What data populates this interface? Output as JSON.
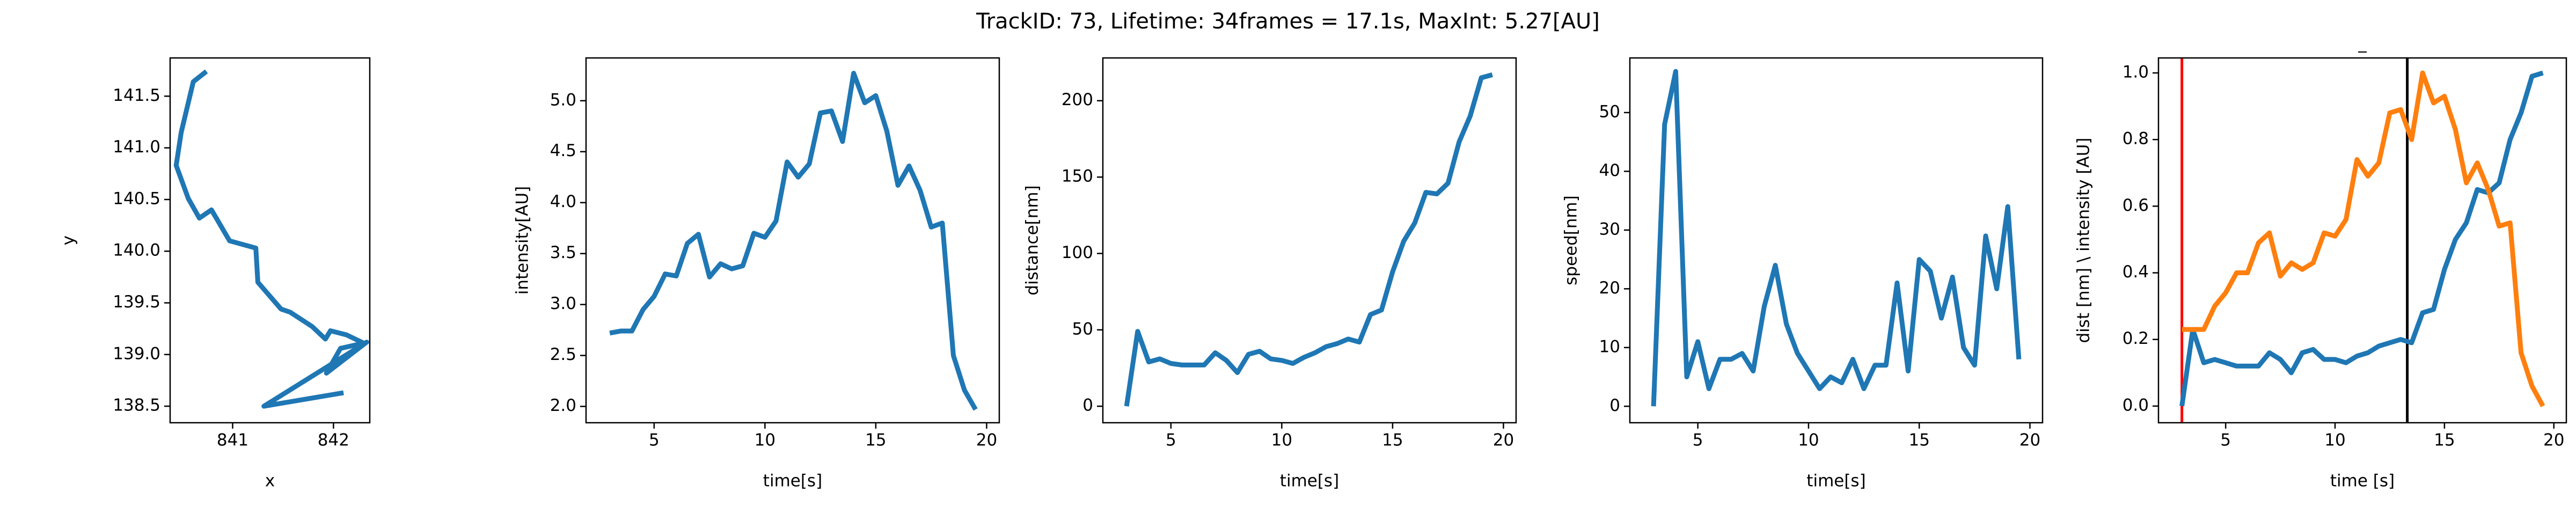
{
  "title": "TrackID: 73, Lifetime: 34frames = 17.1s, MaxInt: 5.27[AU]",
  "chart_data": [
    {
      "type": "line",
      "xlabel": "x",
      "ylabel": "y",
      "x": [
        840.74,
        840.61,
        840.49,
        840.44,
        840.56,
        840.67,
        840.79,
        840.97,
        841.23,
        841.25,
        841.48,
        841.57,
        841.79,
        841.92,
        841.97,
        842.13,
        842.3,
        842.07,
        841.93,
        842.33,
        841.31,
        842.1
      ],
      "series": [
        {
          "color": "#1f77b4",
          "values": [
            141.74,
            141.64,
            141.15,
            140.83,
            140.51,
            140.32,
            140.4,
            140.1,
            140.03,
            139.7,
            139.44,
            139.41,
            139.27,
            139.15,
            139.23,
            139.19,
            139.11,
            139.06,
            138.82,
            139.12,
            138.5,
            138.63
          ]
        }
      ],
      "xlim": [
        840.38,
        842.36
      ],
      "xticks": [
        841,
        842
      ],
      "ylim": [
        138.34,
        141.87
      ],
      "yticks": [
        138.5,
        {
          "value": 139,
          "label": "139.0"
        },
        139.5,
        {
          "value": 140,
          "label": "140.0"
        },
        140.5,
        {
          "value": 141,
          "label": "141.0"
        },
        141.5
      ]
    },
    {
      "type": "line",
      "xlabel": "time[s]",
      "ylabel": "intensity[AU]",
      "x": [
        3,
        3.5,
        4,
        4.5,
        5,
        5.5,
        6,
        6.5,
        7,
        7.5,
        8,
        8.5,
        9,
        9.5,
        10,
        10.5,
        11,
        11.5,
        12,
        12.5,
        13,
        13.5,
        14,
        14.5,
        15,
        15.5,
        16,
        16.5,
        17,
        17.5,
        18,
        18.5,
        19,
        19.5
      ],
      "series": [
        {
          "color": "#1f77b4",
          "values": [
            2.72,
            2.74,
            2.74,
            2.95,
            3.08,
            3.3,
            3.28,
            3.6,
            3.69,
            3.27,
            3.4,
            3.35,
            3.38,
            3.7,
            3.66,
            3.82,
            4.4,
            4.25,
            4.38,
            4.88,
            4.9,
            4.6,
            5.27,
            4.98,
            5.05,
            4.7,
            4.17,
            4.36,
            4.12,
            3.76,
            3.8,
            2.5,
            2.16,
            1.97
          ]
        }
      ],
      "xlim": [
        1.93,
        20.57
      ],
      "xticks": [
        5,
        10,
        15,
        20
      ],
      "ylim": [
        1.84,
        5.42
      ],
      "yticks": [
        {
          "value": 2,
          "label": "2.0"
        },
        2.5,
        {
          "value": 3,
          "label": "3.0"
        },
        3.5,
        {
          "value": 4,
          "label": "4.0"
        },
        4.5,
        {
          "value": 5,
          "label": "5.0"
        }
      ]
    },
    {
      "type": "line",
      "xlabel": "time[s]",
      "ylabel": "distance[nm]",
      "x": [
        3,
        3.5,
        4,
        4.5,
        5,
        5.5,
        6,
        6.5,
        7,
        7.5,
        8,
        8.5,
        9,
        9.5,
        10,
        10.5,
        11,
        11.5,
        12,
        12.5,
        13,
        13.5,
        14,
        14.5,
        15,
        15.5,
        16,
        16.5,
        17,
        17.5,
        18,
        18.5,
        19,
        19.5
      ],
      "series": [
        {
          "color": "#1f77b4",
          "values": [
            0,
            49,
            29,
            31,
            28,
            27,
            27,
            27,
            35,
            30,
            22,
            34,
            36,
            31,
            30,
            28,
            32,
            35,
            39,
            41,
            44,
            42,
            60,
            63,
            88,
            108,
            120,
            140,
            139,
            146,
            173,
            190,
            215,
            217
          ]
        }
      ],
      "xlim": [
        1.93,
        20.57
      ],
      "xticks": [
        5,
        10,
        15,
        20
      ],
      "ylim": [
        -10.8,
        228
      ],
      "yticks": [
        0,
        50,
        100,
        150,
        200
      ]
    },
    {
      "type": "line",
      "xlabel": "time[s]",
      "ylabel": "speed[nm]",
      "x": [
        3,
        3.5,
        4,
        4.5,
        5,
        5.5,
        6,
        6.5,
        7,
        7.5,
        8,
        8.5,
        9,
        9.5,
        10,
        10.5,
        11,
        11.5,
        12,
        12.5,
        13,
        13.5,
        14,
        14.5,
        15,
        15.5,
        16,
        16.5,
        17,
        17.5,
        18,
        18.5,
        19,
        19.5
      ],
      "series": [
        {
          "color": "#1f77b4",
          "values": [
            0,
            48,
            57,
            5,
            11,
            3,
            8,
            8,
            9,
            6,
            17,
            24,
            14,
            9,
            6,
            3,
            5,
            4,
            8,
            3,
            7,
            7,
            21,
            6,
            25,
            23,
            15,
            22,
            10,
            7,
            29,
            20,
            34,
            8
          ]
        }
      ],
      "xlim": [
        1.93,
        20.57
      ],
      "xticks": [
        5,
        10,
        15,
        20
      ],
      "ylim": [
        -2.8,
        59.3
      ],
      "yticks": [
        0,
        10,
        20,
        30,
        40,
        50
      ]
    },
    {
      "type": "line",
      "title": "_",
      "xlabel": "time [s]",
      "ylabel": "dist [nm] \\ intensity [AU]",
      "x": [
        3,
        3.5,
        4,
        4.5,
        5,
        5.5,
        6,
        6.5,
        7,
        7.5,
        8,
        8.5,
        9,
        9.5,
        10,
        10.5,
        11,
        11.5,
        12,
        12.5,
        13,
        13.5,
        14,
        14.5,
        15,
        15.5,
        16,
        16.5,
        17,
        17.5,
        18,
        18.5,
        19,
        19.5
      ],
      "series": [
        {
          "color": "#1f77b4",
          "values": [
            0,
            0.23,
            0.13,
            0.14,
            0.13,
            0.12,
            0.12,
            0.12,
            0.16,
            0.14,
            0.1,
            0.16,
            0.17,
            0.14,
            0.14,
            0.13,
            0.15,
            0.16,
            0.18,
            0.19,
            0.2,
            0.19,
            0.28,
            0.29,
            0.41,
            0.5,
            0.55,
            0.65,
            0.64,
            0.67,
            0.8,
            0.88,
            0.99,
            1.0
          ]
        },
        {
          "color": "#ff7f0e",
          "values": [
            0.23,
            0.23,
            0.23,
            0.3,
            0.34,
            0.4,
            0.4,
            0.49,
            0.52,
            0.39,
            0.43,
            0.41,
            0.43,
            0.52,
            0.51,
            0.56,
            0.74,
            0.69,
            0.73,
            0.88,
            0.89,
            0.8,
            1.0,
            0.91,
            0.93,
            0.83,
            0.67,
            0.73,
            0.65,
            0.54,
            0.55,
            0.16,
            0.06,
            0.0
          ]
        }
      ],
      "vlines": [
        {
          "x": 3.0,
          "color": "red"
        },
        {
          "x": 13.3,
          "color": "black"
        }
      ],
      "xlim": [
        1.93,
        20.57
      ],
      "xticks": [
        5,
        10,
        15,
        20
      ],
      "ylim": [
        -0.05,
        1.045
      ],
      "yticks": [
        {
          "value": 0,
          "label": "0.0"
        },
        0.2,
        0.4,
        0.6,
        0.8,
        {
          "value": 1,
          "label": "1.0"
        }
      ]
    }
  ]
}
